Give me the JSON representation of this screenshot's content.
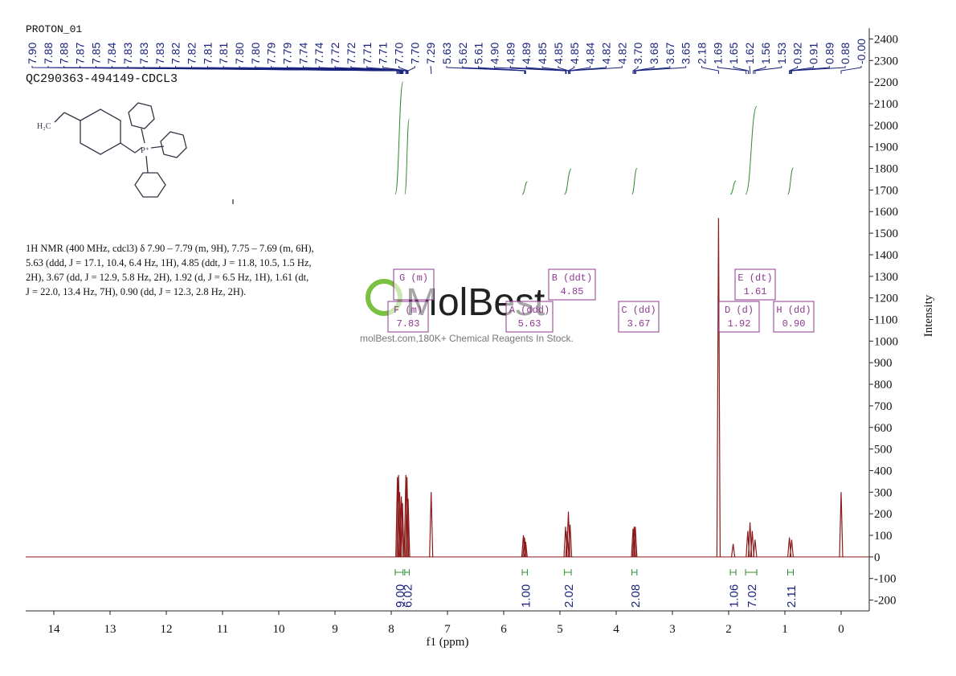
{
  "chart_data": {
    "type": "nmr",
    "title": "PROTON_01",
    "sample": "QC290363-494149-CDCL3",
    "description": "1H NMR (400 MHz, cdcl3) δ 7.90 – 7.79 (m, 9H), 7.75 – 7.69 (m, 6H), 5.63 (ddd, J = 17.1, 10.4, 6.4 Hz, 1H), 4.85 (ddt, J = 11.8, 10.5, 1.5 Hz, 2H), 3.67 (dd, J = 12.9, 5.8 Hz, 2H), 1.92 (d, J = 6.5 Hz, 1H), 1.61 (dt, J = 22.0, 13.4 Hz, 7H), 0.90 (dd, J = 12.3, 2.8 Hz, 2H).",
    "structure_labels": [
      "H₂C",
      "P⁺"
    ],
    "watermark": "MolBest",
    "watermark_note": "molBest.com,180K+ Chemical Reagents In Stock.",
    "xlabel": "f1 (ppm)",
    "ylabel": "Intensity",
    "xlim": [
      14.5,
      -0.5
    ],
    "xticks": [
      14,
      13,
      12,
      11,
      10,
      9,
      8,
      7,
      6,
      5,
      4,
      3,
      2,
      1,
      0
    ],
    "ylim": [
      -250,
      2450
    ],
    "yticks": [
      -200,
      -100,
      0,
      100,
      200,
      300,
      400,
      500,
      600,
      700,
      800,
      900,
      1000,
      1100,
      1200,
      1300,
      1400,
      1500,
      1600,
      1700,
      1800,
      1900,
      2000,
      2100,
      2200,
      2300,
      2400
    ],
    "color": "#8b1a1a",
    "peaks": {
      "x": [
        7.89,
        7.87,
        7.85,
        7.82,
        7.8,
        7.74,
        7.72,
        7.7,
        7.29,
        5.65,
        5.63,
        5.61,
        4.9,
        4.87,
        4.85,
        4.82,
        3.7,
        3.68,
        3.66,
        2.18,
        1.92,
        1.66,
        1.62,
        1.58,
        1.53,
        0.92,
        0.88,
        0.0
      ],
      "y": [
        370,
        380,
        300,
        280,
        250,
        380,
        370,
        270,
        300,
        100,
        90,
        70,
        140,
        120,
        210,
        150,
        130,
        140,
        140,
        1570,
        60,
        120,
        160,
        120,
        80,
        90,
        80,
        300
      ]
    },
    "peak_labels": [
      "7.90",
      "7.88",
      "7.88",
      "7.87",
      "7.85",
      "7.84",
      "7.83",
      "7.83",
      "7.83",
      "7.82",
      "7.82",
      "7.81",
      "7.81",
      "7.80",
      "7.80",
      "7.79",
      "7.79",
      "7.74",
      "7.74",
      "7.72",
      "7.72",
      "7.71",
      "7.71",
      "7.70",
      "7.70",
      "7.29",
      "5.63",
      "5.62",
      "5.61",
      "4.90",
      "4.89",
      "4.89",
      "4.85",
      "4.85",
      "4.85",
      "4.84",
      "4.82",
      "4.82",
      "3.70",
      "3.68",
      "3.67",
      "3.65",
      "2.18",
      "1.69",
      "1.65",
      "1.62",
      "1.56",
      "1.53",
      "0.92",
      "0.91",
      "0.89",
      "0.88",
      "-0.00"
    ],
    "integrals": {
      "ranges": [
        [
          7.93,
          7.79
        ],
        [
          7.76,
          7.68
        ],
        [
          5.67,
          5.58
        ],
        [
          4.92,
          4.8
        ],
        [
          3.72,
          3.63
        ],
        [
          1.97,
          1.87
        ],
        [
          1.7,
          1.5
        ],
        [
          0.95,
          0.85
        ]
      ],
      "values": [
        9,
        6.02,
        1,
        2.02,
        2.08,
        1.06,
        7.02,
        2.11
      ],
      "value_labels": [
        "9.00",
        "6.02",
        "1.00",
        "2.02",
        "2.08",
        "1.06",
        "7.02",
        "2.11"
      ],
      "color": "#2e8b2e"
    },
    "multiplets": [
      {
        "label": "G (m)"
      },
      {
        "label": "F (m)",
        "shift": "7.83"
      },
      {
        "label": "A (ddd)",
        "shift": "5.63"
      },
      {
        "label": "B (ddt)",
        "shift": "4.85"
      },
      {
        "label": "C (dd)",
        "shift": "3.67"
      },
      {
        "label": "D (d)",
        "shift": "1.92"
      },
      {
        "label": "E (dt)",
        "shift": "1.61"
      },
      {
        "label": "H (dd)",
        "shift": "0.90"
      }
    ]
  }
}
